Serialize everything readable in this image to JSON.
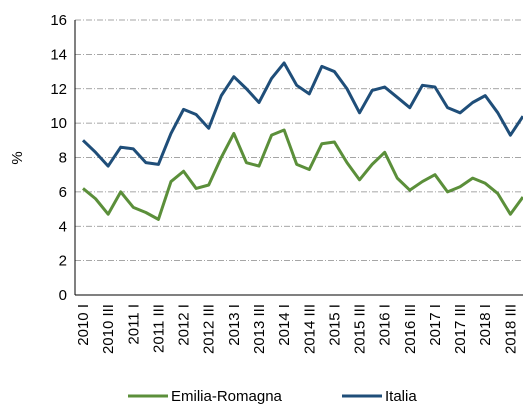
{
  "chart_data": {
    "type": "line",
    "y_label": "%",
    "categories": [
      "2010 I",
      null,
      "2010 III",
      null,
      "2011 I",
      null,
      "2011 III",
      null,
      "2012 I",
      null,
      "2012 III",
      null,
      "2013 I",
      null,
      "2013 III",
      null,
      "2014 I",
      null,
      "2014 III",
      null,
      "2015 I",
      null,
      "2015 III",
      null,
      "2016 I",
      null,
      "2016 III",
      null,
      "2017 I",
      null,
      "2017 III",
      null,
      "2018 I",
      null,
      "2018 III",
      null
    ],
    "series": [
      {
        "name": "Emilia-Romagna",
        "color": "#5b8f3a",
        "values": [
          6.2,
          5.6,
          4.7,
          6.0,
          5.1,
          4.8,
          4.4,
          6.6,
          7.2,
          6.2,
          6.4,
          8.0,
          9.4,
          7.7,
          7.5,
          9.3,
          9.6,
          7.6,
          7.3,
          8.8,
          8.9,
          7.7,
          6.7,
          7.6,
          8.3,
          6.8,
          6.1,
          6.6,
          7.0,
          6.0,
          6.3,
          6.8,
          6.5,
          5.9,
          4.7,
          5.7
        ]
      },
      {
        "name": "Italia",
        "color": "#1f4e79",
        "values": [
          9.0,
          8.3,
          7.5,
          8.6,
          8.5,
          7.7,
          7.6,
          9.4,
          10.8,
          10.5,
          9.7,
          11.6,
          12.7,
          12.0,
          11.2,
          12.6,
          13.5,
          12.2,
          11.7,
          13.3,
          13.0,
          12.0,
          10.6,
          11.9,
          12.1,
          11.5,
          10.9,
          12.2,
          12.1,
          10.9,
          10.6,
          11.2,
          11.6,
          10.6,
          9.3,
          10.4
        ]
      }
    ],
    "ylim": [
      0,
      16
    ],
    "yticks": [
      0,
      2,
      4,
      6,
      8,
      10,
      12,
      14,
      16
    ],
    "grid": true
  }
}
